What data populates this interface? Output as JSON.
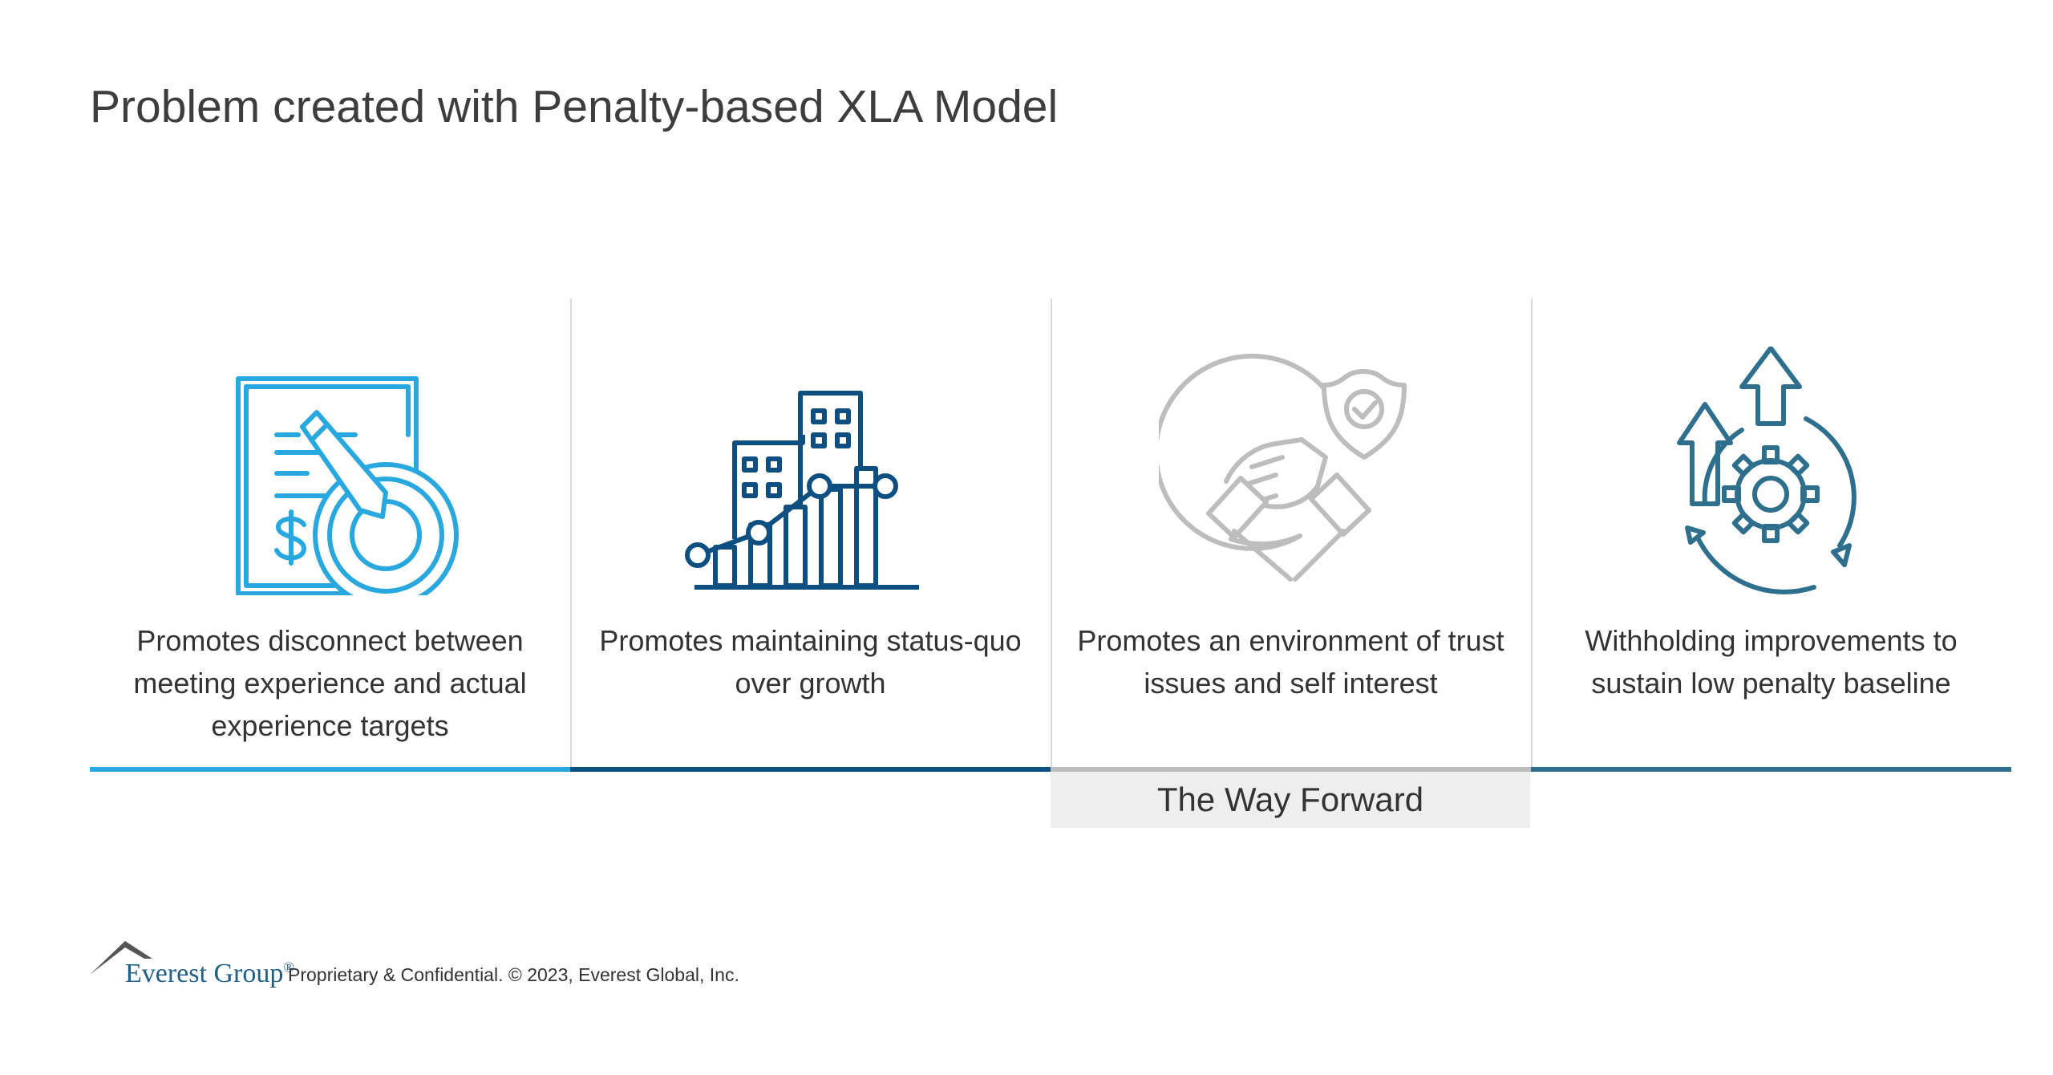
{
  "title": "Problem created with Penalty-based XLA Model",
  "colors": {
    "light_blue": "#29a8df",
    "dark_blue": "#0d4f80",
    "gray": "#bdbdbd",
    "teal": "#2e6f8e"
  },
  "columns": [
    {
      "icon": "document-target-icon",
      "caption": "Promotes disconnect between meeting experience and actual experience targets",
      "color": "#29a8df"
    },
    {
      "icon": "buildings-growth-chart-icon",
      "caption": "Promotes maintaining status-quo over growth",
      "color": "#0d4f80"
    },
    {
      "icon": "handshake-shield-icon",
      "caption": "Promotes an environment of trust issues and self interest",
      "color": "#bdbdbd"
    },
    {
      "icon": "gear-arrows-icon",
      "caption": "Withholding improvements to sustain low penalty baseline",
      "color": "#2e6f8e"
    }
  ],
  "way_forward_label": "The Way Forward",
  "footer": {
    "brand": "Everest Group",
    "brand_mark": "®",
    "legal": "Proprietary & Confidential. © 2023, Everest Global, Inc."
  }
}
